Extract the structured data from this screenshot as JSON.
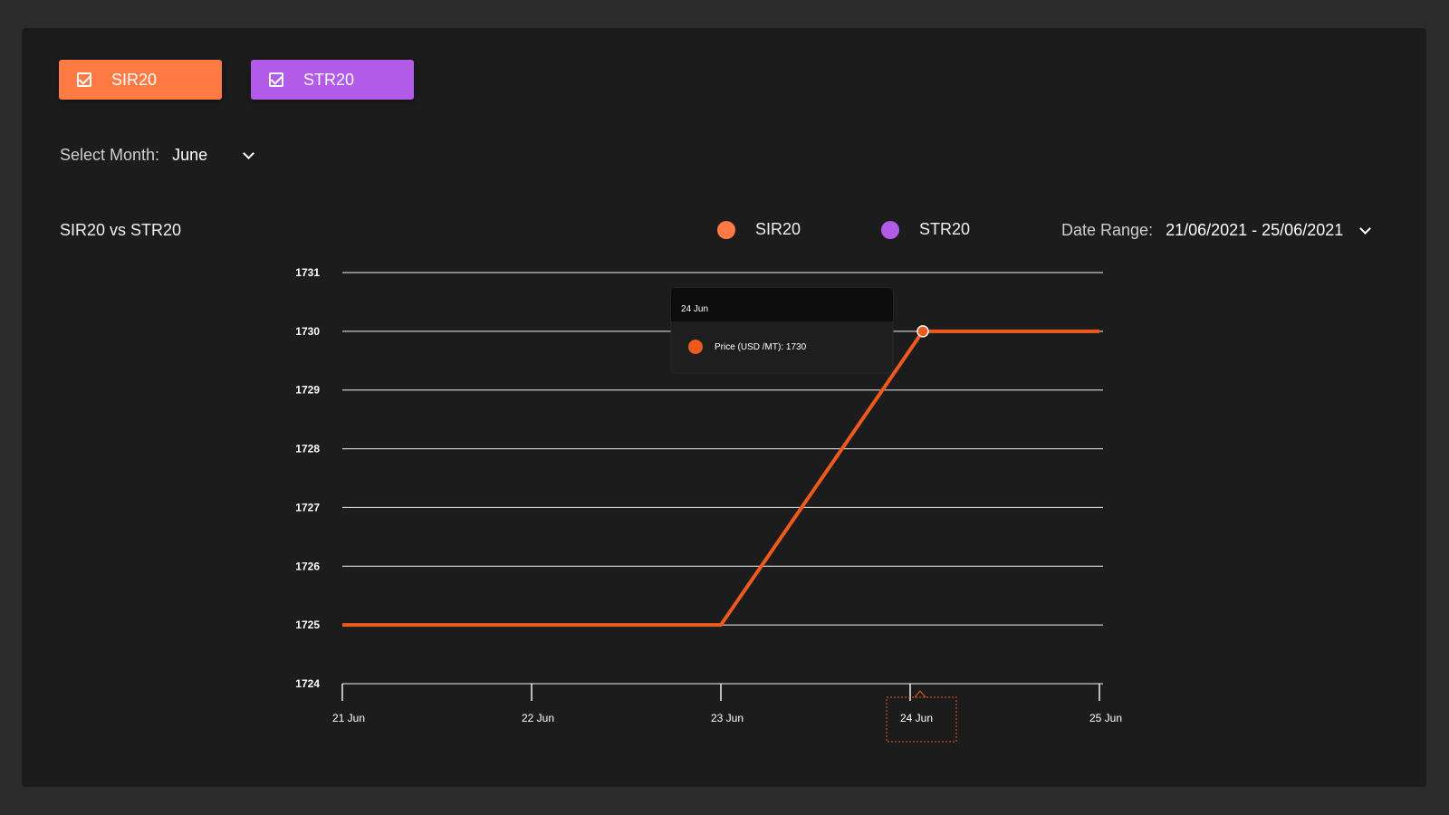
{
  "series_toggles": [
    {
      "label": "SIR20",
      "color": "#ff7a45",
      "checked": true
    },
    {
      "label": "STR20",
      "color": "#b25be8",
      "checked": true
    }
  ],
  "month_selector": {
    "label": "Select Month:",
    "value": "June"
  },
  "chart_header": {
    "title": "SIR20 vs STR20",
    "legend": [
      {
        "label": "SIR20",
        "color": "#ff7a45"
      },
      {
        "label": "STR20",
        "color": "#b25be8"
      }
    ],
    "date_range_label": "Date Range:",
    "date_range_value": "21/06/2021 - 25/06/2021"
  },
  "tooltip": {
    "title": "24 Jun",
    "text": "Price (USD /MT): 1730",
    "color": "#ee5a1e"
  },
  "chart_data": {
    "type": "line",
    "categories": [
      "21 Jun",
      "22 Jun",
      "23 Jun",
      "24 Jun",
      "25 Jun"
    ],
    "series": [
      {
        "name": "SIR20",
        "color": "#ee5a1e",
        "values": [
          1725,
          1725,
          1725,
          1730,
          1730
        ]
      }
    ],
    "y_ticks": [
      1724,
      1725,
      1726,
      1727,
      1728,
      1729,
      1730,
      1731
    ],
    "ylim": [
      1724,
      1731
    ],
    "grid": true,
    "highlighted_category": "24 Jun"
  }
}
